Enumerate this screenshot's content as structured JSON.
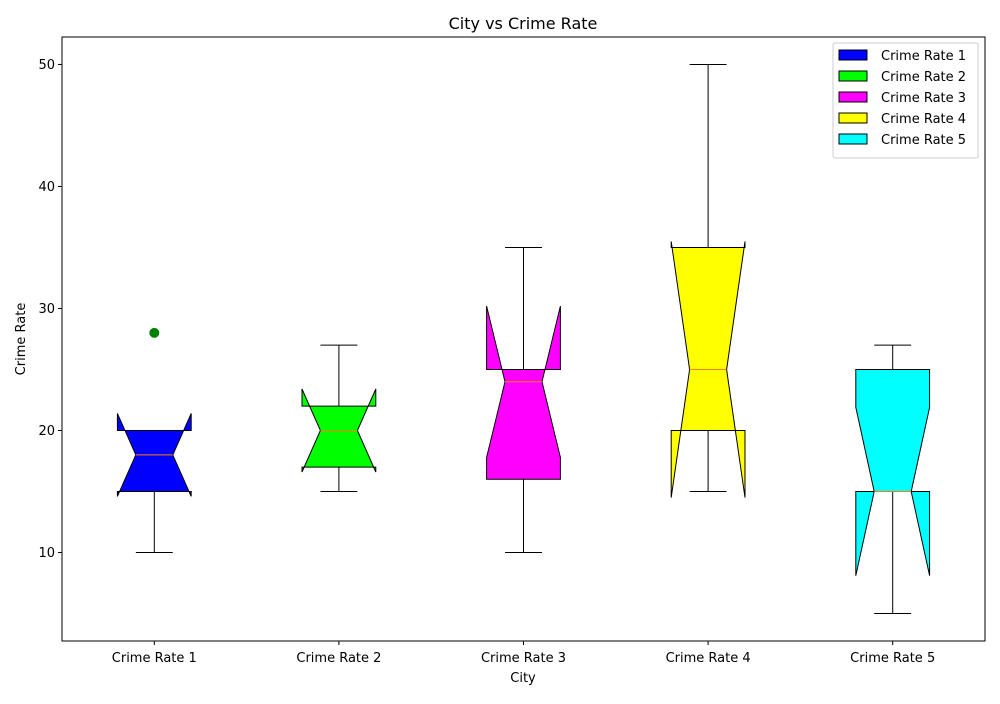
{
  "chart_data": {
    "type": "boxplot",
    "title": "City vs Crime Rate",
    "xlabel": "City",
    "ylabel": "Crime Rate",
    "ylim": [
      2.75,
      52.25
    ],
    "yticks": [
      10,
      20,
      30,
      40,
      50
    ],
    "notched": true,
    "legend": {
      "placement": "top-right"
    },
    "categories": [
      "Crime Rate 1",
      "Crime Rate 2",
      "Crime Rate 3",
      "Crime Rate 4",
      "Crime Rate 5"
    ],
    "series": [
      {
        "name": "Crime Rate 1",
        "color": "#0000ff",
        "whisker_low": 10,
        "q1": 15,
        "median": 18,
        "q3": 20,
        "whisker_high": 20,
        "notch_low": 14.6,
        "notch_high": 21.4,
        "outliers": [
          28
        ]
      },
      {
        "name": "Crime Rate 2",
        "color": "#00ff00",
        "whisker_low": 15,
        "q1": 17,
        "median": 20,
        "q3": 22,
        "whisker_high": 27,
        "notch_low": 16.6,
        "notch_high": 23.4,
        "outliers": []
      },
      {
        "name": "Crime Rate 3",
        "color": "#ff00ff",
        "whisker_low": 10,
        "q1": 16,
        "median": 24,
        "q3": 25,
        "whisker_high": 35,
        "notch_low": 17.8,
        "notch_high": 30.2,
        "outliers": []
      },
      {
        "name": "Crime Rate 4",
        "color": "#ffff00",
        "whisker_low": 15,
        "q1": 20,
        "median": 25,
        "q3": 35,
        "whisker_high": 50,
        "notch_low": 14.5,
        "notch_high": 35.5,
        "outliers": []
      },
      {
        "name": "Crime Rate 5",
        "color": "#00ffff",
        "whisker_low": 5,
        "q1": 15,
        "median": 15,
        "q3": 25,
        "whisker_high": 27,
        "notch_low": 8.1,
        "notch_high": 21.9,
        "outliers": []
      }
    ],
    "median_color": "#ff7f0e",
    "outlier_color": "#008000"
  }
}
